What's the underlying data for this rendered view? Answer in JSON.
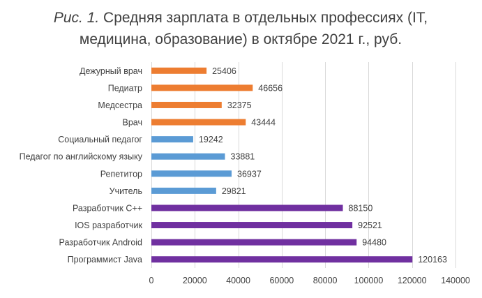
{
  "chart_data": {
    "type": "bar",
    "orientation": "horizontal",
    "title_prefix": "Рис. 1.",
    "title_line1_rest": " Средняя зарплата в отдельных профессиях (IT,",
    "title_line2": "медицина, образование) в октябре 2021 г., руб.",
    "categories": [
      "Дежурный врач",
      "Педиатр",
      "Медсестра",
      "Врач",
      "Социальный педагог",
      "Педагог по английскому языку",
      "Репетитор",
      "Учитель",
      "Разработчик С++",
      "IOS разработчик",
      "Разработчик Android",
      "Программист Java"
    ],
    "values": [
      25406,
      46656,
      32375,
      43444,
      19242,
      33881,
      36937,
      29821,
      88150,
      92521,
      94480,
      120163
    ],
    "bar_colors": [
      "#ed7d31",
      "#ed7d31",
      "#ed7d31",
      "#ed7d31",
      "#5b9bd5",
      "#5b9bd5",
      "#5b9bd5",
      "#5b9bd5",
      "#7030a0",
      "#7030a0",
      "#7030a0",
      "#7030a0"
    ],
    "xlim": [
      0,
      140000
    ],
    "xticks": [
      0,
      20000,
      40000,
      60000,
      80000,
      100000,
      120000,
      140000
    ],
    "grid": true,
    "legend": false
  }
}
